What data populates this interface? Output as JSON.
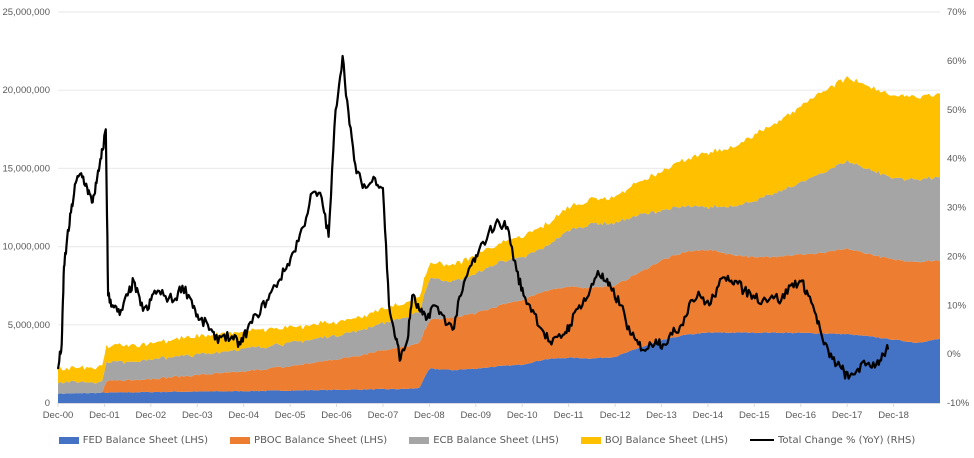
{
  "chart_data": {
    "type": "area",
    "title": "",
    "xlabel": "",
    "ylabel": "",
    "y2label": "",
    "stacked": true,
    "grid": true,
    "legend_position": "bottom",
    "x_ticks": [
      "Dec-00",
      "Dec-01",
      "Dec-02",
      "Dec-03",
      "Dec-04",
      "Dec-05",
      "Dec-06",
      "Dec-07",
      "Dec-08",
      "Dec-09",
      "Dec-10",
      "Dec-11",
      "Dec-12",
      "Dec-13",
      "Dec-14",
      "Dec-15",
      "Dec-16",
      "Dec-17",
      "Dec-18"
    ],
    "xlim": [
      2000.92,
      2019.92
    ],
    "ylim": [
      0,
      25000000
    ],
    "y_ticks": [
      "0",
      "5,000,000",
      "10,000,000",
      "15,000,000",
      "20,000,000",
      "25,000,000"
    ],
    "y_tick_values": [
      0,
      5000000,
      10000000,
      15000000,
      20000000,
      25000000
    ],
    "y2lim": [
      -10,
      70
    ],
    "y2_ticks": [
      "-10%",
      "0%",
      "10%",
      "20%",
      "30%",
      "40%",
      "50%",
      "60%",
      "70%"
    ],
    "y2_tick_values": [
      -10,
      0,
      10,
      20,
      30,
      40,
      50,
      60,
      70
    ],
    "x": [
      2000.92,
      2001.42,
      2001.9,
      2001.93,
      2002.42,
      2002.92,
      2003.42,
      2003.92,
      2004.42,
      2004.92,
      2005.42,
      2005.92,
      2006.42,
      2006.92,
      2007.42,
      2007.92,
      2008.42,
      2008.7,
      2008.92,
      2009.42,
      2009.92,
      2010.42,
      2010.92,
      2011.42,
      2011.92,
      2012.42,
      2012.92,
      2013.42,
      2013.92,
      2014.42,
      2014.92,
      2015.42,
      2015.92,
      2016.42,
      2016.92,
      2017.42,
      2017.92,
      2018.42,
      2018.92,
      2019.42,
      2019.92
    ],
    "series": [
      {
        "name": "FED Balance Sheet (LHS)",
        "color": "#4472C4",
        "axis": "left",
        "values": [
          600000,
          620000,
          650000,
          660000,
          680000,
          700000,
          720000,
          730000,
          740000,
          760000,
          780000,
          800000,
          820000,
          840000,
          860000,
          880000,
          900000,
          950000,
          2200000,
          2100000,
          2200000,
          2350000,
          2450000,
          2800000,
          2900000,
          2850000,
          2950000,
          3500000,
          4000000,
          4350000,
          4500000,
          4500000,
          4500000,
          4500000,
          4480000,
          4450000,
          4400000,
          4250000,
          4050000,
          3850000,
          4100000
        ]
      },
      {
        "name": "PBOC Balance Sheet (LHS)",
        "color": "#ED7D31",
        "axis": "left",
        "values": [
          0,
          0,
          0,
          700000,
          780000,
          850000,
          950000,
          1050000,
          1150000,
          1250000,
          1400000,
          1550000,
          1750000,
          1950000,
          2200000,
          2500000,
          2700000,
          2850000,
          3100000,
          3350000,
          3550000,
          3850000,
          4150000,
          4400000,
          4500000,
          4550000,
          4550000,
          4800000,
          5100000,
          5300000,
          5300000,
          5000000,
          4800000,
          4900000,
          5000000,
          5150000,
          5450000,
          5250000,
          5100000,
          5200000,
          5000000
        ]
      },
      {
        "name": "ECB Balance Sheet (LHS)",
        "color": "#A5A5A5",
        "axis": "left",
        "values": [
          750000,
          720000,
          700000,
          1200000,
          1200000,
          1250000,
          1300000,
          1300000,
          1350000,
          1450000,
          1450000,
          1500000,
          1500000,
          1550000,
          1600000,
          1750000,
          1850000,
          1950000,
          2700000,
          2300000,
          2500000,
          2800000,
          2700000,
          2800000,
          3600000,
          4100000,
          4000000,
          3700000,
          3200000,
          2900000,
          2700000,
          3100000,
          3600000,
          4100000,
          4600000,
          5150000,
          5600000,
          5400000,
          5200000,
          5300000,
          5300000
        ]
      },
      {
        "name": "BOJ Balance Sheet (LHS)",
        "color": "#FFC000",
        "axis": "left",
        "values": [
          850000,
          900000,
          950000,
          1000000,
          1050000,
          1050000,
          1100000,
          1150000,
          1150000,
          1100000,
          1100000,
          1000000,
          950000,
          850000,
          850000,
          900000,
          950000,
          1000000,
          1000000,
          1050000,
          1150000,
          1200000,
          1300000,
          1400000,
          1500000,
          1600000,
          1700000,
          2100000,
          2500000,
          3000000,
          3400000,
          3800000,
          4200000,
          4500000,
          4900000,
          5200000,
          5300000,
          5300000,
          5300000,
          5300000,
          5300000
        ]
      },
      {
        "name": "Total Change % (YoY) (RHS)",
        "color": "#000000",
        "axis": "right",
        "type": "line",
        "x": [
          2000.92,
          2001.0,
          2001.05,
          2001.1,
          2001.2,
          2001.3,
          2001.42,
          2001.55,
          2001.65,
          2001.75,
          2001.85,
          2001.95,
          2002.0,
          2002.1,
          2002.25,
          2002.42,
          2002.55,
          2002.7,
          2002.85,
          2003.0,
          2003.2,
          2003.42,
          2003.6,
          2003.8,
          2003.95,
          2004.15,
          2004.3,
          2004.5,
          2004.7,
          2004.85,
          2005.0,
          2005.2,
          2005.42,
          2005.6,
          2005.8,
          2006.0,
          2006.2,
          2006.4,
          2006.6,
          2006.75,
          2006.9,
          2007.05,
          2007.2,
          2007.35,
          2007.55,
          2007.75,
          2007.92,
          2008.05,
          2008.2,
          2008.3,
          2008.45,
          2008.55,
          2008.7,
          2008.85,
          2009.0,
          2009.2,
          2009.42,
          2009.6,
          2009.8,
          2009.95,
          2010.2,
          2010.42,
          2010.6,
          2010.8,
          2010.95,
          2011.15,
          2011.35,
          2011.55,
          2011.8,
          2011.95,
          2012.15,
          2012.35,
          2012.55,
          2012.7,
          2012.85,
          2013.05,
          2013.25,
          2013.42,
          2013.6,
          2013.8,
          2013.95,
          2014.15,
          2014.35,
          2014.55,
          2014.75,
          2014.95,
          2015.15,
          2015.35,
          2015.5,
          2015.7,
          2015.9,
          2016.1,
          2016.3,
          2016.5,
          2016.7,
          2016.9,
          2017.05,
          2017.25,
          2017.42,
          2017.6,
          2017.8,
          2017.95,
          2018.15,
          2018.35,
          2018.55,
          2018.7,
          2018.8
        ],
        "values": [
          -3,
          2,
          18,
          22,
          29,
          35,
          37,
          34,
          31,
          35,
          40,
          46,
          12,
          10,
          8,
          12,
          15,
          10,
          9,
          13,
          12,
          11,
          14,
          11,
          7,
          6,
          3,
          4,
          3,
          2,
          5,
          8,
          11,
          14,
          17,
          21,
          26,
          33,
          32,
          24,
          50,
          61,
          47,
          37,
          34,
          36,
          34,
          10,
          3,
          -1,
          3,
          12,
          9,
          7,
          10,
          8,
          5,
          12,
          18,
          20,
          25,
          27,
          26,
          17,
          12,
          9,
          5,
          2,
          4,
          6,
          10,
          12,
          17,
          15,
          13,
          10,
          4,
          2,
          1,
          3,
          2,
          4,
          6,
          11,
          12,
          10,
          14,
          16,
          15,
          13,
          12,
          11,
          12,
          11,
          14,
          15,
          13,
          8,
          2,
          -1,
          -3,
          -5,
          -3,
          -2,
          -2,
          0,
          1
        ]
      }
    ]
  }
}
